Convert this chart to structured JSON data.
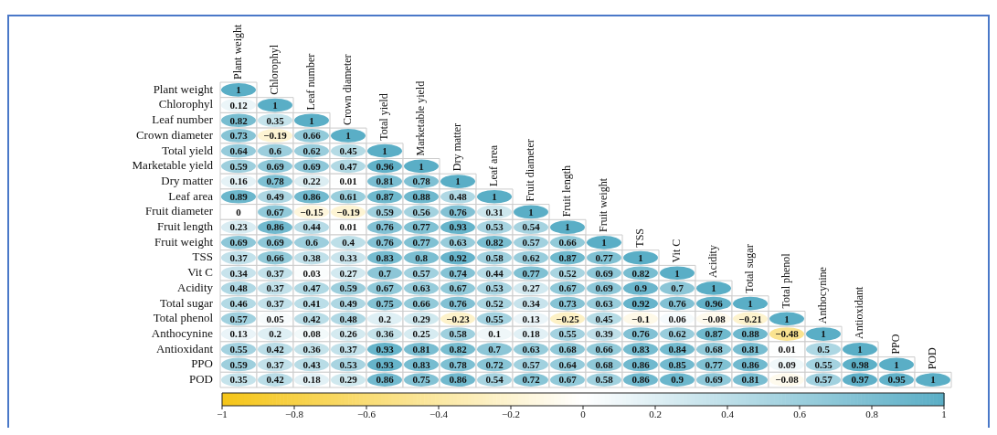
{
  "chart_data": {
    "type": "heatmap",
    "categories": [
      "Plant weight",
      "Chlorophyl",
      "Leaf number",
      "Crown diameter",
      "Total yield",
      "Marketable yield",
      "Dry matter",
      "Leaf area",
      "Fruit diameter",
      "Fruit length",
      "Fruit weight",
      "TSS",
      "Vit C",
      "Acidity",
      "Total sugar",
      "Total phenol",
      "Anthocynine",
      "Antioxidant",
      "PPO",
      "POD"
    ],
    "y_categories": [
      "Plant weight",
      "Chlorophyl",
      "Leaf number",
      "Crown diameter",
      "Total yield",
      "Marketable yield",
      "Dry matter",
      "Leaf area",
      "Fruit diameter",
      "Fruit length",
      "Fruit weight",
      "TSS",
      "Vit C",
      "Acidity",
      "Total sugar",
      "Total phenol",
      "Anthocynine",
      "Antioxidant",
      "PPO",
      "POD"
    ],
    "cells": [
      [
        1,
        null,
        null,
        null,
        null,
        null,
        null,
        null,
        null,
        null,
        null,
        null,
        null,
        null,
        null,
        null,
        null,
        null,
        null,
        null
      ],
      [
        0.12,
        1,
        null,
        null,
        null,
        null,
        null,
        null,
        null,
        null,
        null,
        null,
        null,
        null,
        null,
        null,
        null,
        null,
        null,
        null
      ],
      [
        0.82,
        0.35,
        1,
        null,
        null,
        null,
        null,
        null,
        null,
        null,
        null,
        null,
        null,
        null,
        null,
        null,
        null,
        null,
        null,
        null
      ],
      [
        0.73,
        -0.19,
        0.66,
        1,
        null,
        null,
        null,
        null,
        null,
        null,
        null,
        null,
        null,
        null,
        null,
        null,
        null,
        null,
        null,
        null
      ],
      [
        0.64,
        0.6,
        0.62,
        0.45,
        1,
        null,
        null,
        null,
        null,
        null,
        null,
        null,
        null,
        null,
        null,
        null,
        null,
        null,
        null,
        null
      ],
      [
        0.59,
        0.69,
        0.69,
        0.47,
        0.96,
        1,
        null,
        null,
        null,
        null,
        null,
        null,
        null,
        null,
        null,
        null,
        null,
        null,
        null,
        null
      ],
      [
        0.16,
        0.78,
        0.22,
        0.01,
        0.81,
        0.78,
        1,
        null,
        null,
        null,
        null,
        null,
        null,
        null,
        null,
        null,
        null,
        null,
        null,
        null
      ],
      [
        0.89,
        0.49,
        0.86,
        0.61,
        0.87,
        0.88,
        0.48,
        1,
        null,
        null,
        null,
        null,
        null,
        null,
        null,
        null,
        null,
        null,
        null,
        null
      ],
      [
        0,
        0.67,
        -0.15,
        -0.19,
        0.59,
        0.56,
        0.76,
        0.31,
        1,
        null,
        null,
        null,
        null,
        null,
        null,
        null,
        null,
        null,
        null,
        null
      ],
      [
        0.23,
        0.86,
        0.44,
        0.01,
        0.76,
        0.77,
        0.93,
        0.53,
        0.54,
        1,
        null,
        null,
        null,
        null,
        null,
        null,
        null,
        null,
        null,
        null
      ],
      [
        0.69,
        0.69,
        0.6,
        0.4,
        0.76,
        0.77,
        0.63,
        0.82,
        0.57,
        0.66,
        1,
        null,
        null,
        null,
        null,
        null,
        null,
        null,
        null,
        null
      ],
      [
        0.37,
        0.66,
        0.38,
        0.33,
        0.83,
        0.8,
        0.92,
        0.58,
        0.62,
        0.87,
        0.77,
        1,
        null,
        null,
        null,
        null,
        null,
        null,
        null,
        null
      ],
      [
        0.34,
        0.37,
        0.03,
        0.27,
        0.7,
        0.57,
        0.74,
        0.44,
        0.77,
        0.52,
        0.69,
        0.82,
        1,
        null,
        null,
        null,
        null,
        null,
        null,
        null
      ],
      [
        0.48,
        0.37,
        0.47,
        0.59,
        0.67,
        0.63,
        0.67,
        0.53,
        0.27,
        0.67,
        0.69,
        0.9,
        0.7,
        1,
        null,
        null,
        null,
        null,
        null,
        null
      ],
      [
        0.46,
        0.37,
        0.41,
        0.49,
        0.75,
        0.66,
        0.76,
        0.52,
        0.34,
        0.73,
        0.63,
        0.92,
        0.76,
        0.96,
        1,
        null,
        null,
        null,
        null,
        null
      ],
      [
        0.57,
        0.05,
        0.42,
        0.48,
        0.2,
        0.29,
        -0.23,
        0.55,
        0.13,
        -0.25,
        0.45,
        -0.1,
        0.06,
        -0.08,
        -0.21,
        1,
        null,
        null,
        null,
        null
      ],
      [
        0.13,
        0.2,
        0.08,
        0.26,
        0.36,
        0.25,
        0.58,
        0.1,
        0.18,
        0.55,
        0.39,
        0.76,
        0.62,
        0.87,
        0.88,
        -0.48,
        1,
        null,
        null,
        null
      ],
      [
        0.55,
        0.42,
        0.36,
        0.37,
        0.93,
        0.81,
        0.82,
        0.7,
        0.63,
        0.68,
        0.66,
        0.83,
        0.84,
        0.68,
        0.81,
        0.01,
        0.5,
        1,
        null,
        null
      ],
      [
        0.59,
        0.37,
        0.43,
        0.53,
        0.93,
        0.83,
        0.78,
        0.72,
        0.57,
        0.64,
        0.68,
        0.86,
        0.85,
        0.77,
        0.86,
        0.09,
        0.55,
        0.98,
        1,
        null
      ],
      [
        0.35,
        0.42,
        0.18,
        0.29,
        0.86,
        0.75,
        0.86,
        0.54,
        0.72,
        0.67,
        0.58,
        0.86,
        0.9,
        0.69,
        0.81,
        -0.08,
        0.57,
        0.97,
        0.95,
        1
      ]
    ],
    "clim": [
      -1,
      1
    ],
    "cticks": [
      -1,
      -0.8,
      -0.6,
      -0.4,
      -0.2,
      0,
      0.2,
      0.4,
      0.6,
      0.8,
      1
    ],
    "data_labels": true
  }
}
